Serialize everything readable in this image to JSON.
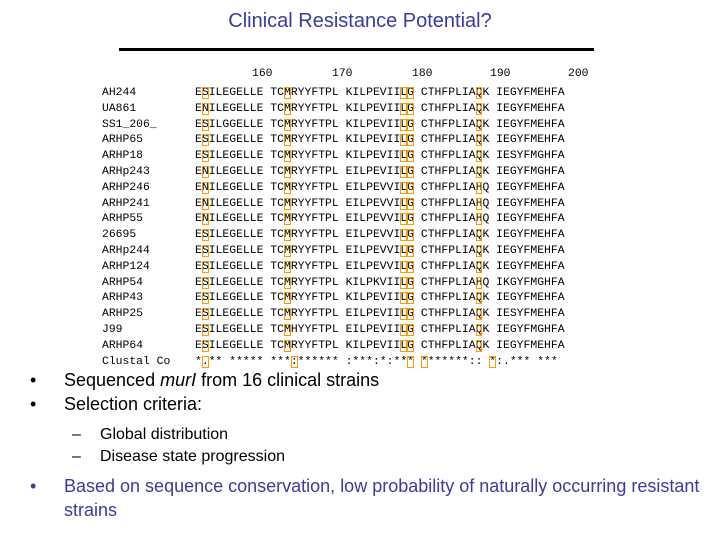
{
  "slide": {
    "title": "Clinical Resistance Potential?"
  },
  "alignment": {
    "positions": [
      "160",
      "170",
      "180",
      "190",
      "200"
    ],
    "strains": [
      {
        "name": "AH244",
        "seq": "ESILEGELLE TCMRYYFTPL KILPEVIILG CTHFPLIAQK IEGYFMEHFA"
      },
      {
        "name": "UA861",
        "seq": "ENILEGELLE TCMRYYFTPL KILPEVIILG CTHFPLIAQK IEGYFMEHFA"
      },
      {
        "name": "SS1_206_",
        "seq": "ESILGGELLE TCMRYYFTPL KILPEVIILG CTHFPLIAQK IEGYFMEHFA"
      },
      {
        "name": "ARHP65",
        "seq": "ESILEGELLE TCMRYYFTPL KILPEVIILG CTHFPLIAQK IEGYFMEHFA"
      },
      {
        "name": "ARHP18",
        "seq": "ESILEGELLE TCMRYYFTPL KILPEVIILG CTHFPLIAQK IESYFMGHFA"
      },
      {
        "name": "ARHp243",
        "seq": "ENILEGELLE TCMRYYFTPL EILPEVIILG CTHFPLIAQK IEGYFMGHFA"
      },
      {
        "name": "ARHP246",
        "seq": "ENILEGELLE TCMRYYFTPL EILPEVVILG CTHFPLIAHQ IEGYFMEHFA"
      },
      {
        "name": "ARHP241",
        "seq": "ENILEGELLE TCMRYYFTPL EILPEVVILG CTHFPLIAHQ IEGYFMEHFA"
      },
      {
        "name": "ARHP55",
        "seq": "ENILEGELLE TCMRYYFTPL EILPEVVILG CTHFPLIAHQ IEGYFMEHFA"
      },
      {
        "name": "26695",
        "seq": "ESILEGELLE TCMRYYFTPL EILPEVVILG CTHFPLIAQK IEGYFMEHFA"
      },
      {
        "name": "ARHp244",
        "seq": "ESILEGELLE TCMRYYFTPL EILPEVVILG CTHFPLIAQK IEGYFMEHFA"
      },
      {
        "name": "ARHP124",
        "seq": "ESILEGELLE TCMRYYFTPL EILPEVVILG CTHFPLIAQK IEGYFMEHFA"
      },
      {
        "name": "ARHP54",
        "seq": "ESILEGELLE TCMRYYFTPL KILPKVIILG CTHFPLIAHQ IKGYFMGHFA"
      },
      {
        "name": "ARHP43",
        "seq": "ESILEGELLE TCMRYYFTPL KILPEVIILG CTHFPLIAQK IEGYFMEHFA"
      },
      {
        "name": "ARHP25",
        "seq": "ESILEGELLE TCMRYYFTPL EILPEVIILG CTHFPLIAQK IESYFMEHFA"
      },
      {
        "name": "J99",
        "seq": "ESILEGELLE TCMHYYFTPL EILPEVIILG CTHFPLIAQK IEGYFMGHFA"
      },
      {
        "name": "ARHP64",
        "seq": "ESILEGELLE TCMRYYFTPL KILPEVIILG CTHFPLIAQK IEGYFMEHFA"
      },
      {
        "name": "Clustal Co",
        "seq": "*.** ***** ***:****** :***:*:*** *******:: *:.*** ***"
      }
    ]
  },
  "bullets": {
    "b1_prefix": "Sequenced ",
    "b1_gene": "murI",
    "b1_suffix": " from 16 clinical strains",
    "b2": "Selection criteria:",
    "sub1": "Global distribution",
    "sub2": "Disease state progression",
    "b3": "Based on sequence conservation, low probability of naturally occurring resistant strains"
  },
  "highlight_columns": [
    1,
    12,
    28,
    29,
    38
  ]
}
